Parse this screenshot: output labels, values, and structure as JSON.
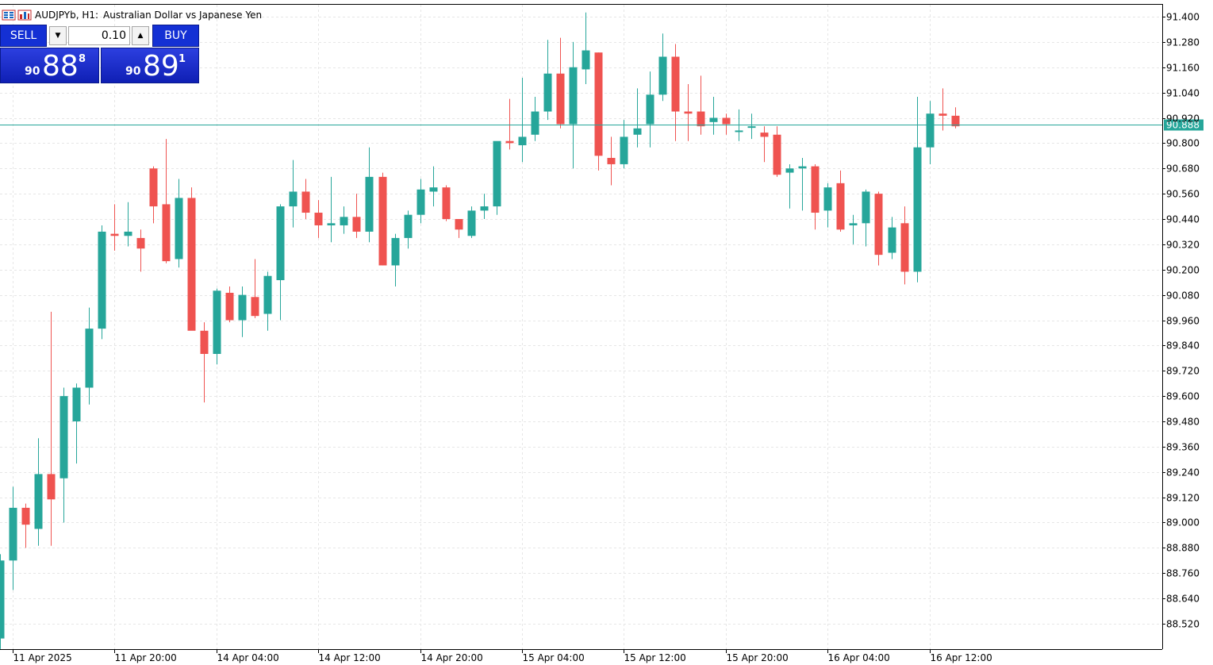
{
  "header": {
    "symbol_timeframe": "AUDJPYb, H1:",
    "description": "Australian Dollar vs Japanese Yen"
  },
  "trade_panel": {
    "sell_label": "SELL",
    "buy_label": "BUY",
    "volume": "0.10",
    "sell_price": {
      "prefix": "90",
      "big": "88",
      "sup": "8"
    },
    "buy_price": {
      "prefix": "90",
      "big": "89",
      "sup": "1"
    }
  },
  "chart_data": {
    "type": "candlestick",
    "symbol": "AUDJPYb",
    "timeframe": "H1",
    "current_price": 90.888,
    "current_price_label": "90.888",
    "y_range": [
      88.44,
      91.46
    ],
    "y_ticks": [
      "91.400",
      "91.280",
      "91.160",
      "91.040",
      "90.920",
      "90.800",
      "90.680",
      "90.560",
      "90.440",
      "90.320",
      "90.200",
      "90.080",
      "89.960",
      "89.840",
      "89.720",
      "89.600",
      "89.480",
      "89.360",
      "89.240",
      "89.120",
      "89.000",
      "88.880",
      "88.760",
      "88.640",
      "88.520"
    ],
    "x_ticks": [
      {
        "label": "11 Apr 2025",
        "bar": 1
      },
      {
        "label": "11 Apr 20:00",
        "bar": 9
      },
      {
        "label": "14 Apr 04:00",
        "bar": 17
      },
      {
        "label": "14 Apr 12:00",
        "bar": 25
      },
      {
        "label": "14 Apr 20:00",
        "bar": 33
      },
      {
        "label": "15 Apr 04:00",
        "bar": 41
      },
      {
        "label": "15 Apr 12:00",
        "bar": 49
      },
      {
        "label": "15 Apr 20:00",
        "bar": 57
      },
      {
        "label": "16 Apr 04:00",
        "bar": 65
      },
      {
        "label": "16 Apr 12:00",
        "bar": 73
      }
    ],
    "bull_color": "#26a69a",
    "bear_color": "#ef5350",
    "grid": true,
    "candles": [
      [
        88.45,
        88.85,
        88.4,
        88.82
      ],
      [
        88.82,
        89.17,
        88.68,
        89.07
      ],
      [
        89.07,
        89.09,
        88.88,
        88.99
      ],
      [
        88.97,
        89.4,
        88.89,
        89.23
      ],
      [
        89.23,
        90.0,
        88.89,
        89.11
      ],
      [
        89.21,
        89.64,
        89.0,
        89.6
      ],
      [
        89.48,
        89.66,
        89.28,
        89.64
      ],
      [
        89.64,
        90.02,
        89.56,
        89.92
      ],
      [
        89.92,
        90.41,
        89.87,
        90.38
      ],
      [
        90.37,
        90.51,
        90.29,
        90.36
      ],
      [
        90.36,
        90.52,
        90.31,
        90.38
      ],
      [
        90.35,
        90.39,
        90.19,
        90.3
      ],
      [
        90.68,
        90.69,
        90.42,
        90.5
      ],
      [
        90.51,
        90.82,
        90.23,
        90.24
      ],
      [
        90.25,
        90.63,
        90.21,
        90.54
      ],
      [
        90.54,
        90.59,
        89.92,
        89.91
      ],
      [
        89.91,
        89.95,
        89.57,
        89.8
      ],
      [
        89.8,
        90.11,
        89.75,
        90.1
      ],
      [
        90.09,
        90.12,
        89.95,
        89.96
      ],
      [
        89.96,
        90.12,
        89.88,
        90.08
      ],
      [
        90.07,
        90.25,
        89.97,
        89.98
      ],
      [
        89.99,
        90.19,
        89.91,
        90.17
      ],
      [
        90.15,
        90.51,
        89.96,
        90.5
      ],
      [
        90.5,
        90.72,
        90.4,
        90.57
      ],
      [
        90.57,
        90.63,
        90.44,
        90.47
      ],
      [
        90.47,
        90.53,
        90.35,
        90.41
      ],
      [
        90.41,
        90.64,
        90.33,
        90.42
      ],
      [
        90.41,
        90.5,
        90.37,
        90.45
      ],
      [
        90.45,
        90.56,
        90.35,
        90.38
      ],
      [
        90.38,
        90.78,
        90.33,
        90.64
      ],
      [
        90.64,
        90.66,
        90.22,
        90.22
      ],
      [
        90.22,
        90.37,
        90.12,
        90.35
      ],
      [
        90.35,
        90.48,
        90.3,
        90.46
      ],
      [
        90.46,
        90.63,
        90.42,
        90.58
      ],
      [
        90.57,
        90.69,
        90.5,
        90.59
      ],
      [
        90.59,
        90.6,
        90.43,
        90.44
      ],
      [
        90.44,
        90.42,
        90.35,
        90.39
      ],
      [
        90.36,
        90.5,
        90.35,
        90.48
      ],
      [
        90.48,
        90.56,
        90.44,
        90.5
      ],
      [
        90.5,
        90.8,
        90.46,
        90.81
      ],
      [
        90.81,
        91.01,
        90.77,
        90.8
      ],
      [
        90.79,
        91.11,
        90.71,
        90.83
      ],
      [
        90.84,
        91.02,
        90.81,
        90.95
      ],
      [
        90.95,
        91.29,
        90.91,
        91.13
      ],
      [
        91.13,
        91.3,
        90.87,
        90.89
      ],
      [
        90.89,
        91.28,
        90.68,
        91.16
      ],
      [
        91.15,
        91.42,
        91.08,
        91.24
      ],
      [
        91.23,
        91.23,
        90.67,
        90.74
      ],
      [
        90.73,
        90.83,
        90.6,
        90.7
      ],
      [
        90.7,
        90.91,
        90.68,
        90.83
      ],
      [
        90.84,
        91.06,
        90.78,
        90.87
      ],
      [
        90.89,
        91.14,
        90.78,
        91.03
      ],
      [
        91.03,
        91.32,
        91.0,
        91.21
      ],
      [
        91.21,
        91.27,
        90.81,
        90.95
      ],
      [
        90.95,
        91.08,
        90.81,
        90.94
      ],
      [
        90.95,
        91.12,
        90.84,
        90.88
      ],
      [
        90.9,
        91.02,
        90.84,
        90.92
      ],
      [
        90.92,
        90.94,
        90.84,
        90.89
      ],
      [
        90.86,
        90.96,
        90.81,
        90.86
      ],
      [
        90.88,
        90.94,
        90.82,
        90.88
      ],
      [
        90.85,
        90.88,
        90.71,
        90.83
      ],
      [
        90.84,
        90.88,
        90.64,
        90.65
      ],
      [
        90.66,
        90.7,
        90.49,
        90.68
      ],
      [
        90.68,
        90.73,
        90.48,
        90.69
      ],
      [
        90.69,
        90.7,
        90.39,
        90.47
      ],
      [
        90.48,
        90.61,
        90.4,
        90.59
      ],
      [
        90.61,
        90.67,
        90.38,
        90.39
      ],
      [
        90.41,
        90.46,
        90.32,
        90.42
      ],
      [
        90.42,
        90.58,
        90.31,
        90.57
      ],
      [
        90.56,
        90.57,
        90.22,
        90.27
      ],
      [
        90.28,
        90.45,
        90.25,
        90.4
      ],
      [
        90.42,
        90.5,
        90.13,
        90.19
      ],
      [
        90.19,
        91.02,
        90.14,
        90.78
      ],
      [
        90.78,
        91.0,
        90.7,
        90.94
      ],
      [
        90.94,
        91.06,
        90.86,
        90.93
      ],
      [
        90.93,
        90.97,
        90.87,
        90.88
      ]
    ]
  }
}
